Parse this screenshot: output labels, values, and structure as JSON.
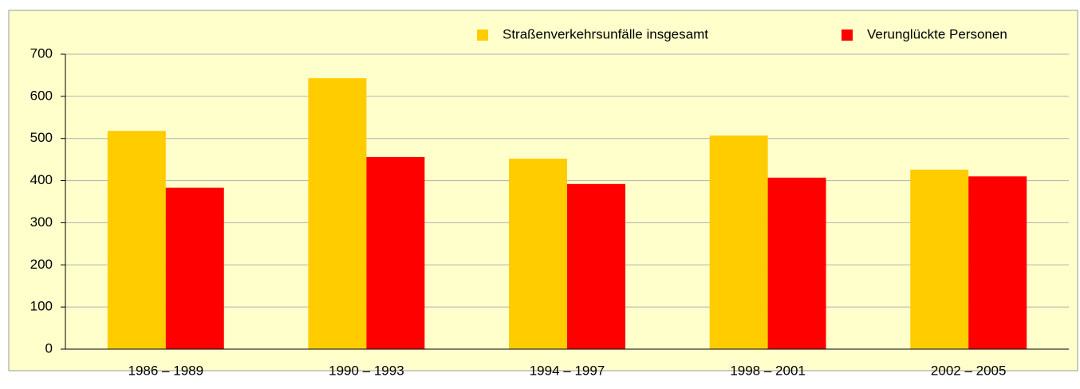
{
  "chart_data": {
    "type": "bar",
    "categories": [
      "1986 – 1989",
      "1990 – 1993",
      "1994 – 1997",
      "1998 – 2001",
      "2002 – 2005"
    ],
    "series": [
      {
        "name": "Straßenverkehrsunfälle insgesamt",
        "color": "#ffcc00",
        "values": [
          518,
          643,
          452,
          507,
          426
        ]
      },
      {
        "name": "Verunglückte Personen",
        "color": "#ff0000",
        "values": [
          383,
          456,
          392,
          407,
          410
        ]
      }
    ],
    "ylim": [
      0,
      700
    ],
    "yticks": [
      0,
      100,
      200,
      300,
      400,
      500,
      600,
      700
    ],
    "grid": true,
    "legend": "top"
  }
}
